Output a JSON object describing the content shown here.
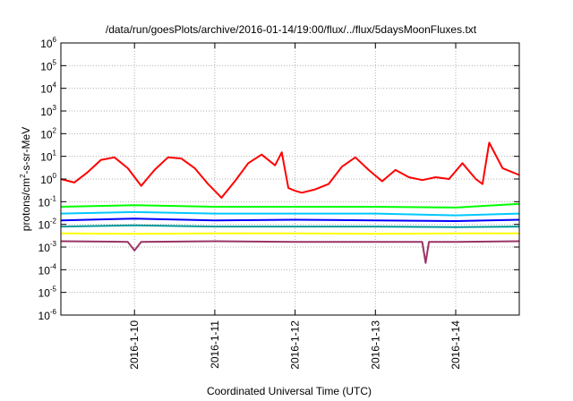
{
  "chart_data": {
    "type": "line",
    "title": "/data/run/goesPlots/archive/2016-01-14/19:00/flux/../flux/5daysMoonFluxes.txt",
    "xlabel": "Coordinated Universal Time (UTC)",
    "ylabel": {
      "base": "protons/cm",
      "sup": "2",
      "rest": "-s-sr-MeV"
    },
    "xlim": [
      "2016-01-09T02:00",
      "2016-01-14T19:00"
    ],
    "xticks": [
      "2016-1-10",
      "2016-1-11",
      "2016-1-12",
      "2016-1-13",
      "2016-1-14"
    ],
    "yscale": "log",
    "ylim": [
      1e-06,
      1000000.0
    ],
    "yticks": [
      {
        "base": "10",
        "exp": "6"
      },
      {
        "base": "10",
        "exp": "5"
      },
      {
        "base": "10",
        "exp": "4"
      },
      {
        "base": "10",
        "exp": "3"
      },
      {
        "base": "10",
        "exp": "2"
      },
      {
        "base": "10",
        "exp": "1"
      },
      {
        "base": "10",
        "exp": "0"
      },
      {
        "base": "10",
        "exp": "-1"
      },
      {
        "base": "10",
        "exp": "-2"
      },
      {
        "base": "10",
        "exp": "-3"
      },
      {
        "base": "10",
        "exp": "-4"
      },
      {
        "base": "10",
        "exp": "-5"
      },
      {
        "base": "10",
        "exp": "-6"
      }
    ],
    "grid": true,
    "legend": "none",
    "series": [
      {
        "color": "#ff0000",
        "x": [
          "2016-01-09T02:00",
          "2016-01-09T06:00",
          "2016-01-09T10:00",
          "2016-01-09T14:00",
          "2016-01-09T18:00",
          "2016-01-09T22:00",
          "2016-01-10T02:00",
          "2016-01-10T06:00",
          "2016-01-10T10:00",
          "2016-01-10T14:00",
          "2016-01-10T18:00",
          "2016-01-10T22:00",
          "2016-01-11T02:00",
          "2016-01-11T06:00",
          "2016-01-11T10:00",
          "2016-01-11T14:00",
          "2016-01-11T18:00",
          "2016-01-11T20:00",
          "2016-01-11T22:00",
          "2016-01-12T00:00",
          "2016-01-12T02:00",
          "2016-01-12T06:00",
          "2016-01-12T10:00",
          "2016-01-12T14:00",
          "2016-01-12T18:00",
          "2016-01-12T22:00",
          "2016-01-13T02:00",
          "2016-01-13T06:00",
          "2016-01-13T10:00",
          "2016-01-13T14:00",
          "2016-01-13T18:00",
          "2016-01-13T22:00",
          "2016-01-14T02:00",
          "2016-01-14T06:00",
          "2016-01-14T08:00",
          "2016-01-14T10:00",
          "2016-01-14T14:00",
          "2016-01-14T19:00"
        ],
        "y": [
          1.0,
          0.7,
          2.0,
          7.0,
          9.0,
          3.0,
          0.5,
          2.5,
          9.0,
          8.0,
          3.0,
          0.6,
          0.15,
          0.8,
          5.0,
          12.0,
          4.0,
          15.0,
          0.4,
          0.3,
          0.25,
          0.35,
          0.6,
          3.5,
          9.0,
          2.5,
          0.8,
          2.5,
          1.2,
          0.9,
          1.2,
          1.0,
          5.0,
          1.0,
          0.6,
          40.0,
          3.0,
          1.5
        ]
      },
      {
        "color": "#00ff00",
        "x": [
          "2016-01-09T02:00",
          "2016-01-10T00:00",
          "2016-01-11T00:00",
          "2016-01-12T00:00",
          "2016-01-13T00:00",
          "2016-01-14T00:00",
          "2016-01-14T19:00"
        ],
        "y": [
          0.06,
          0.07,
          0.06,
          0.06,
          0.06,
          0.055,
          0.08
        ]
      },
      {
        "color": "#00c8ff",
        "x": [
          "2016-01-09T02:00",
          "2016-01-10T00:00",
          "2016-01-11T00:00",
          "2016-01-12T00:00",
          "2016-01-13T00:00",
          "2016-01-14T00:00",
          "2016-01-14T19:00"
        ],
        "y": [
          0.03,
          0.035,
          0.03,
          0.03,
          0.03,
          0.025,
          0.03
        ]
      },
      {
        "color": "#0000ff",
        "x": [
          "2016-01-09T02:00",
          "2016-01-10T00:00",
          "2016-01-11T00:00",
          "2016-01-12T00:00",
          "2016-01-13T00:00",
          "2016-01-14T00:00",
          "2016-01-14T19:00"
        ],
        "y": [
          0.015,
          0.018,
          0.015,
          0.016,
          0.015,
          0.014,
          0.016
        ]
      },
      {
        "color": "#009999",
        "x": [
          "2016-01-09T02:00",
          "2016-01-10T00:00",
          "2016-01-11T00:00",
          "2016-01-12T00:00",
          "2016-01-13T00:00",
          "2016-01-14T00:00",
          "2016-01-14T19:00"
        ],
        "y": [
          0.008,
          0.009,
          0.008,
          0.008,
          0.008,
          0.0075,
          0.008
        ]
      },
      {
        "color": "#ffff00",
        "x": [
          "2016-01-09T02:00",
          "2016-01-10T00:00",
          "2016-01-11T00:00",
          "2016-01-12T00:00",
          "2016-01-13T00:00",
          "2016-01-14T00:00",
          "2016-01-14T19:00"
        ],
        "y": [
          0.004,
          0.0038,
          0.004,
          0.004,
          0.0038,
          0.004,
          0.004
        ]
      },
      {
        "color": "#993366",
        "x": [
          "2016-01-09T02:00",
          "2016-01-09T22:00",
          "2016-01-10T00:00",
          "2016-01-10T02:00",
          "2016-01-11T00:00",
          "2016-01-12T00:00",
          "2016-01-13T14:00",
          "2016-01-13T15:00",
          "2016-01-13T16:00",
          "2016-01-14T00:00",
          "2016-01-14T19:00"
        ],
        "y": [
          0.0018,
          0.0017,
          0.0007,
          0.0017,
          0.0018,
          0.0017,
          0.0017,
          0.0002,
          0.0017,
          0.0017,
          0.0018
        ]
      }
    ]
  }
}
